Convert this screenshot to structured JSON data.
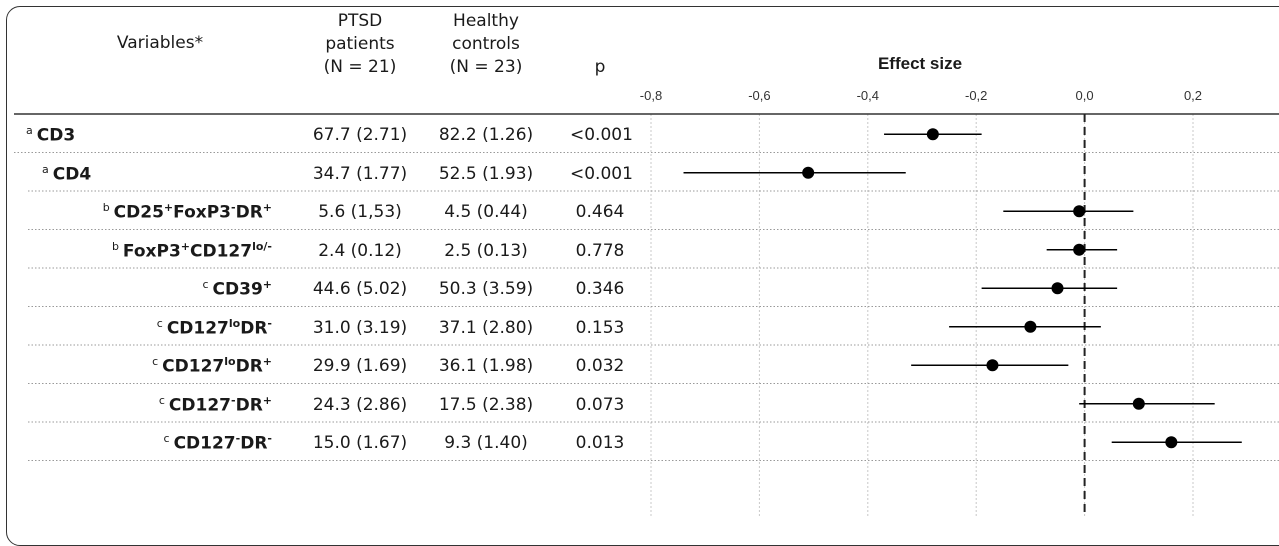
{
  "headers": {
    "variables": "Variables*",
    "ptsd": [
      "PTSD",
      "patients",
      "(N = 21)"
    ],
    "healthy": [
      "Healthy",
      "controls",
      "(N = 23)"
    ],
    "p": "p",
    "effect": "Effect size"
  },
  "rows": [
    {
      "lead": "a",
      "parts": [
        [
          "CD3",
          ""
        ]
      ],
      "ptsd": "67.7 (2.71)",
      "healthy": "82.2 (1.26)",
      "p": "<0.001"
    },
    {
      "lead": "a",
      "parts": [
        [
          "CD4",
          ""
        ]
      ],
      "ptsd": "34.7 (1.77)",
      "healthy": "52.5 (1.93)",
      "p": "<0.001"
    },
    {
      "lead": "b",
      "parts": [
        [
          "CD25",
          "+"
        ],
        [
          "FoxP3",
          "-"
        ],
        [
          "DR",
          "+"
        ]
      ],
      "ptsd": "5.6 (1,53)",
      "healthy": "4.5 (0.44)",
      "p": "0.464"
    },
    {
      "lead": "b",
      "parts": [
        [
          "FoxP3",
          "+"
        ],
        [
          "CD127",
          "lo/-"
        ]
      ],
      "ptsd": "2.4 (0.12)",
      "healthy": "2.5 (0.13)",
      "p": "0.778"
    },
    {
      "lead": "c",
      "parts": [
        [
          "CD39",
          "+"
        ]
      ],
      "ptsd": "44.6 (5.02)",
      "healthy": "50.3 (3.59)",
      "p": "0.346"
    },
    {
      "lead": "c",
      "parts": [
        [
          "CD127",
          "lo"
        ],
        [
          "DR",
          "-"
        ]
      ],
      "ptsd": "31.0 (3.19)",
      "healthy": "37.1 (2.80)",
      "p": "0.153"
    },
    {
      "lead": "c",
      "parts": [
        [
          "CD127",
          "lo"
        ],
        [
          "DR",
          "+"
        ]
      ],
      "ptsd": "29.9 (1.69)",
      "healthy": "36.1 (1.98)",
      "p": "0.032"
    },
    {
      "lead": "c",
      "parts": [
        [
          "CD127",
          "-"
        ],
        [
          "DR",
          "+"
        ]
      ],
      "ptsd": "24.3 (2.86)",
      "healthy": "17.5 (2.38)",
      "p": "0.073"
    },
    {
      "lead": "c",
      "parts": [
        [
          "CD127",
          "-"
        ],
        [
          "DR",
          "-"
        ]
      ],
      "ptsd": "15.0 (1.67)",
      "healthy": "9.3 (1.40)",
      "p": "0.013"
    }
  ],
  "chart_data": {
    "type": "scatter",
    "xlabel": "Effect size",
    "ticks": [
      "-0,8",
      "-0,6",
      "-0,4",
      "-0,2",
      "0,0",
      "0,2"
    ],
    "tick_values": [
      -0.8,
      -0.6,
      -0.4,
      -0.2,
      0.0,
      0.2
    ],
    "xlim": [
      -0.8,
      0.32
    ],
    "reference_line": 0.0,
    "grid": true,
    "categories": [
      "CD3",
      "CD4",
      "CD25+FoxP3-DR+",
      "FoxP3+CD127lo/-",
      "CD39+",
      "CD127loDR-",
      "CD127loDR+",
      "CD127-DR+",
      "CD127-DR-"
    ],
    "estimates": [
      -0.28,
      -0.51,
      -0.01,
      -0.01,
      -0.05,
      -0.1,
      -0.17,
      0.1,
      0.16
    ],
    "ci_low": [
      -0.37,
      -0.74,
      -0.15,
      -0.07,
      -0.19,
      -0.25,
      -0.32,
      -0.01,
      0.05
    ],
    "ci_high": [
      -0.19,
      -0.33,
      0.09,
      0.06,
      0.06,
      0.03,
      -0.03,
      0.24,
      0.29
    ],
    "colors": {
      "marker": "#000000",
      "ci": "#000000",
      "reference": "#222222",
      "grid": "#c8c8c8"
    }
  }
}
